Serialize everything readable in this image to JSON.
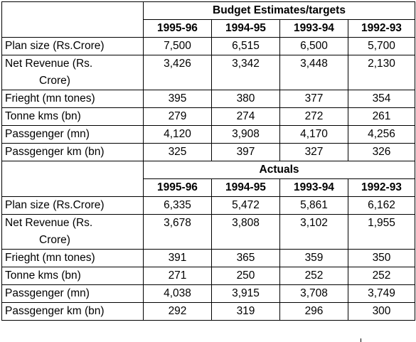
{
  "budget": {
    "heading": "Budget Estimates/targets",
    "years": [
      "1995-96",
      "1994-95",
      "1993-94",
      "1992-93"
    ],
    "rows": [
      {
        "label_lines": [
          "Plan size (Rs.Crore)"
        ],
        "values": [
          "7,500",
          "6,515",
          "6,500",
          "5,700"
        ]
      },
      {
        "label_lines": [
          "Net Revenue (Rs.",
          "Crore)"
        ],
        "values": [
          "3,426",
          "3,342",
          "3,448",
          "2,130"
        ]
      },
      {
        "label_lines": [
          "Frieght (mn tones)"
        ],
        "values": [
          "395",
          "380",
          "377",
          "354"
        ]
      },
      {
        "label_lines": [
          "Tonne kms (bn)"
        ],
        "values": [
          "279",
          "274",
          "272",
          "261"
        ]
      },
      {
        "label_lines": [
          "Passgenger (mn)"
        ],
        "values": [
          "4,120",
          "3,908",
          "4,170",
          "4,256"
        ]
      },
      {
        "label_lines": [
          "Passgenger km (bn)"
        ],
        "values": [
          "325",
          "397",
          "327",
          "326"
        ]
      }
    ]
  },
  "actuals": {
    "heading": "Actuals",
    "years": [
      "1995-96",
      "1994-95",
      "1993-94",
      "1992-93"
    ],
    "rows": [
      {
        "label_lines": [
          "Plan size (Rs.Crore)"
        ],
        "values": [
          "6,335",
          "5,472",
          "5,861",
          "6,162"
        ]
      },
      {
        "label_lines": [
          "Net Revenue (Rs.",
          "Crore)"
        ],
        "values": [
          "3,678",
          "3,808",
          "3,102",
          "1,955"
        ]
      },
      {
        "label_lines": [
          "Frieght (mn tones)"
        ],
        "values": [
          "391",
          "365",
          "359",
          "350"
        ]
      },
      {
        "label_lines": [
          "Tonne kms (bn)"
        ],
        "values": [
          "271",
          "250",
          "252",
          "252"
        ]
      },
      {
        "label_lines": [
          "Passgenger (mn)"
        ],
        "values": [
          "4,038",
          "3,915",
          "3,708",
          "3,749"
        ]
      },
      {
        "label_lines": [
          "Passgenger km (bn)"
        ],
        "values": [
          "292",
          "319",
          "296",
          "300"
        ]
      }
    ]
  }
}
